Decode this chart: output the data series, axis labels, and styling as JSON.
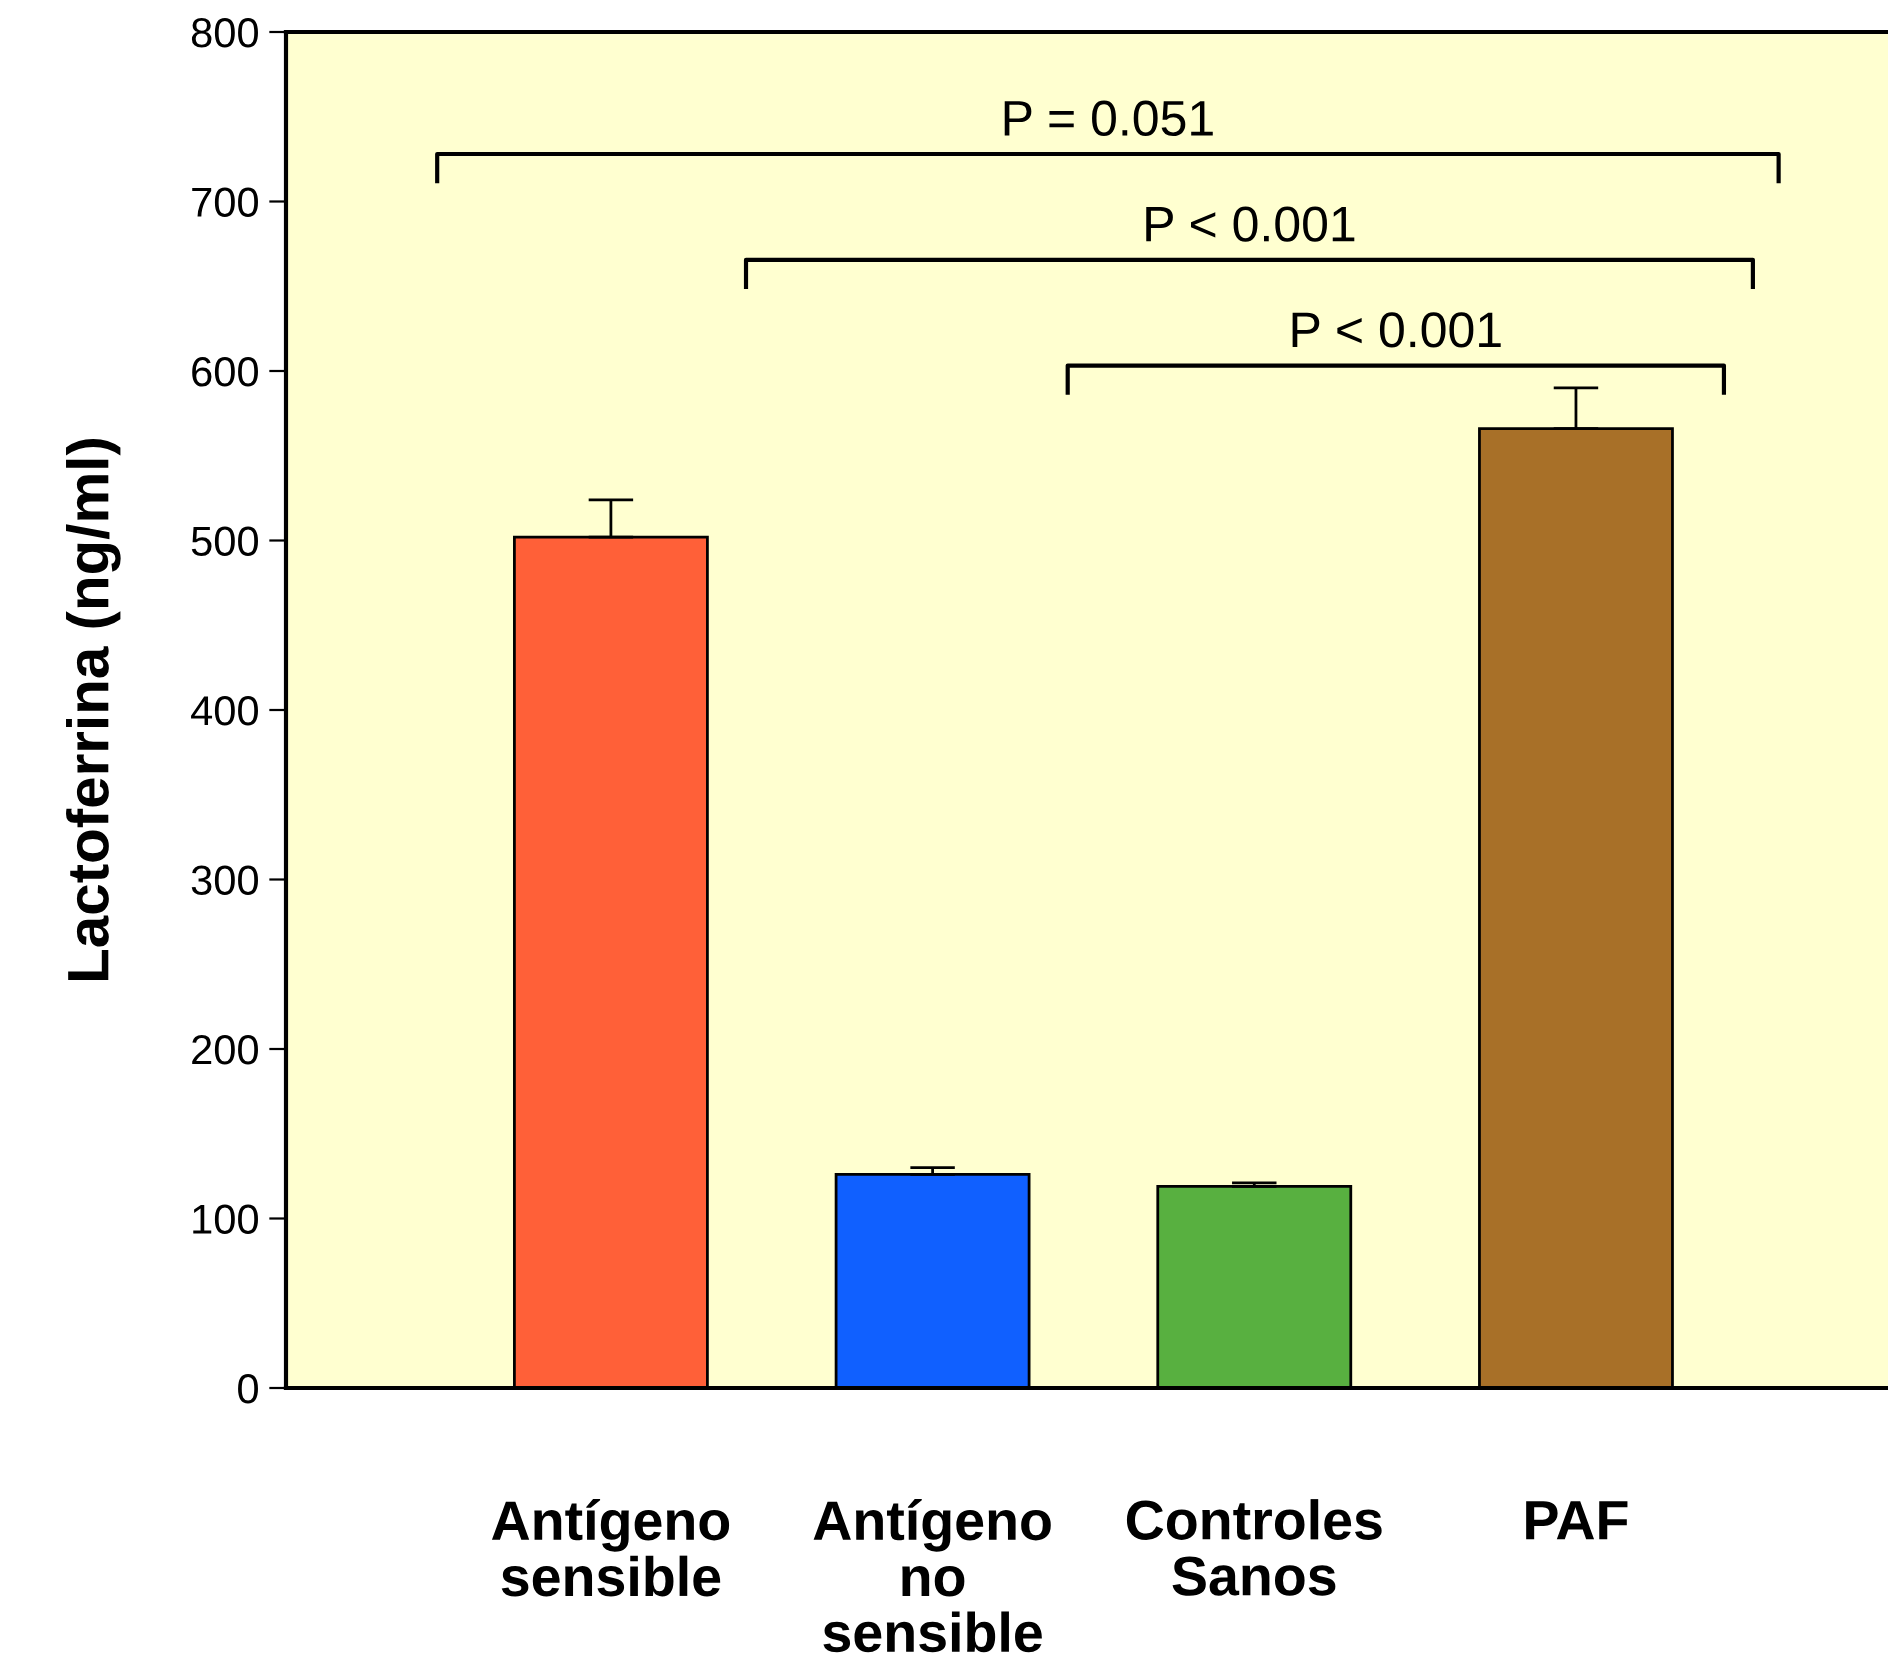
{
  "chart_data": {
    "type": "bar",
    "ylabel": "Lactoferrina (ng/ml)",
    "categories": [
      "Antígeno\nsensible",
      "Antígeno\nno\nsensible",
      "Controles\nSanos",
      "PAF"
    ],
    "values": [
      502,
      126,
      119,
      566
    ],
    "errors": [
      22,
      4,
      2,
      24
    ],
    "colors": [
      "#ff6038",
      "#1060ff",
      "#58b040",
      "#a87028"
    ],
    "ylim": [
      0,
      800
    ],
    "yticks": [
      0,
      100,
      200,
      300,
      400,
      500,
      600,
      700,
      800
    ],
    "grid": false,
    "annotations": [
      "P = 0.051",
      "P < 0.001",
      "P < 0.001"
    ]
  }
}
